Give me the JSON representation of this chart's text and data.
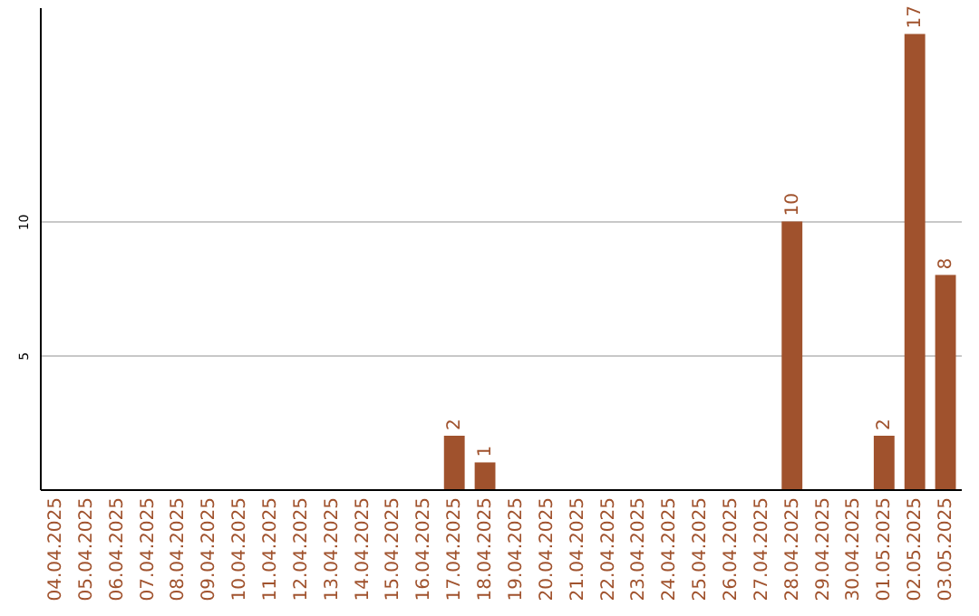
{
  "chart_data": {
    "type": "bar",
    "categories": [
      "04.04.2025",
      "05.04.2025",
      "06.04.2025",
      "07.04.2025",
      "08.04.2025",
      "09.04.2025",
      "10.04.2025",
      "11.04.2025",
      "12.04.2025",
      "13.04.2025",
      "14.04.2025",
      "15.04.2025",
      "16.04.2025",
      "17.04.2025",
      "18.04.2025",
      "19.04.2025",
      "20.04.2025",
      "21.04.2025",
      "22.04.2025",
      "23.04.2025",
      "24.04.2025",
      "25.04.2025",
      "26.04.2025",
      "27.04.2025",
      "28.04.2025",
      "29.04.2025",
      "30.04.2025",
      "01.05.2025",
      "02.05.2025",
      "03.05.2025"
    ],
    "values": [
      0,
      0,
      0,
      0,
      0,
      0,
      0,
      0,
      0,
      0,
      0,
      0,
      0,
      2,
      1,
      0,
      0,
      0,
      0,
      0,
      0,
      0,
      0,
      0,
      10,
      0,
      0,
      2,
      17,
      8
    ],
    "value_labels": [
      null,
      null,
      null,
      null,
      null,
      null,
      null,
      null,
      null,
      null,
      null,
      null,
      null,
      "2",
      "1",
      null,
      null,
      null,
      null,
      null,
      null,
      null,
      null,
      null,
      "10",
      null,
      null,
      "2",
      "17",
      "8"
    ],
    "color": "#a0522d",
    "ylim": [
      0,
      18
    ],
    "yticks": [
      5,
      10
    ],
    "grid": "y"
  }
}
